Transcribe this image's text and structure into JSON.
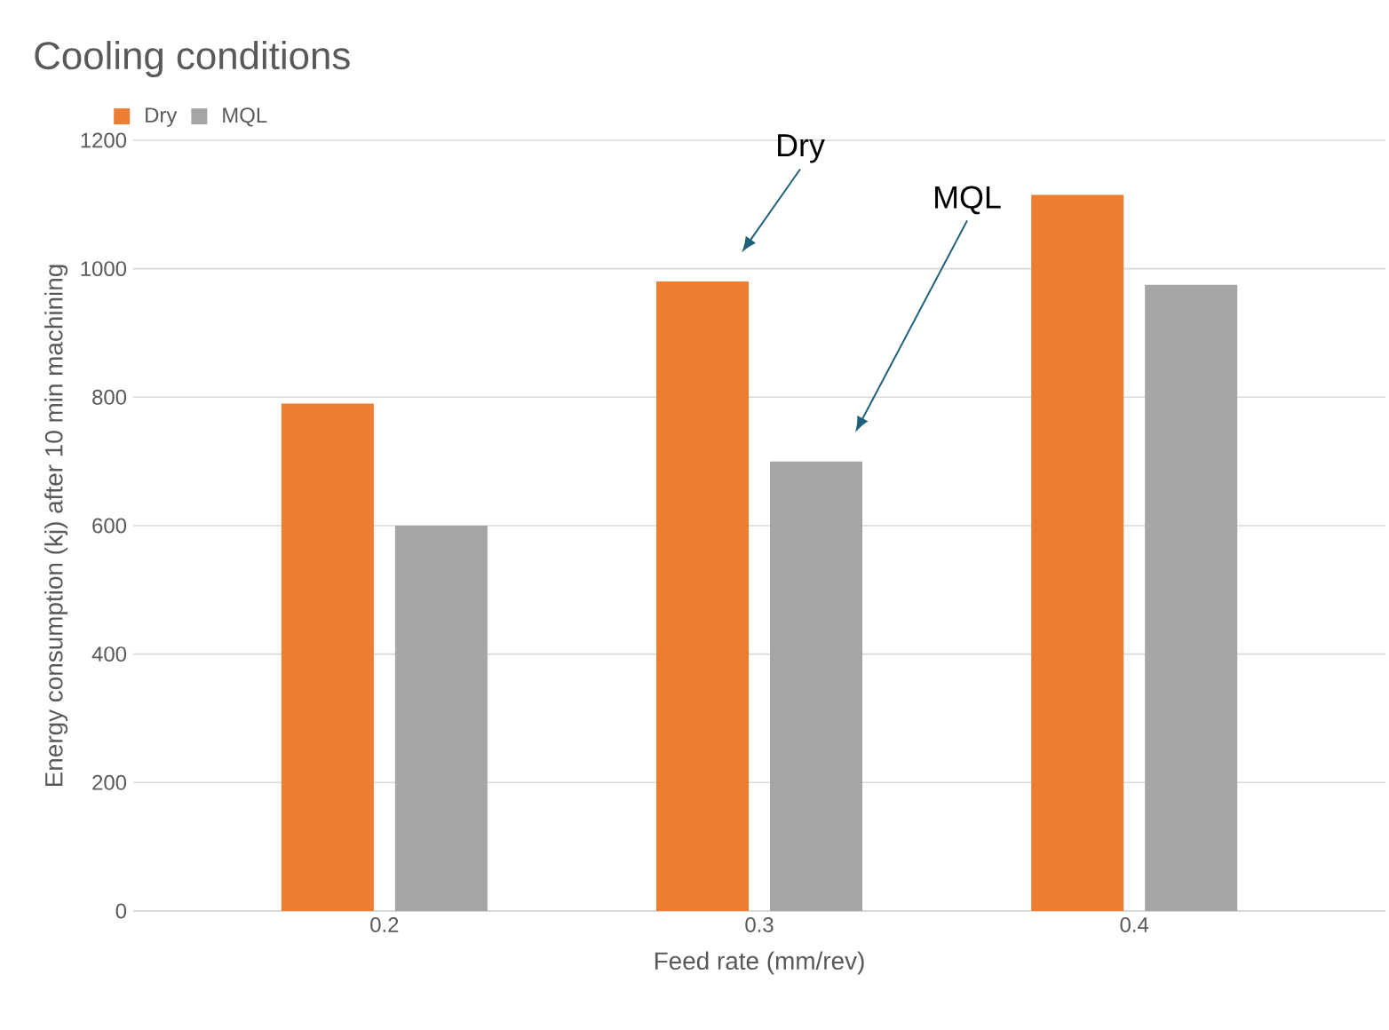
{
  "chart_data": {
    "type": "bar",
    "title": "Cooling conditions",
    "xlabel": "Feed rate (mm/rev)",
    "ylabel": "Energy consumption (kj) after 10 min machining",
    "categories": [
      "0.2",
      "0.3",
      "0.4"
    ],
    "series": [
      {
        "name": "Dry",
        "color": "#ed7d31",
        "values": [
          790,
          980,
          1115
        ]
      },
      {
        "name": "MQL",
        "color": "#a5a5a5",
        "values": [
          600,
          700,
          975
        ]
      }
    ],
    "ylim": [
      0,
      1200
    ],
    "yticks": [
      0,
      200,
      400,
      600,
      800,
      1000,
      1200
    ],
    "grid": "y",
    "legend": "top left",
    "annotations": [
      "Dry",
      "MQL"
    ]
  }
}
